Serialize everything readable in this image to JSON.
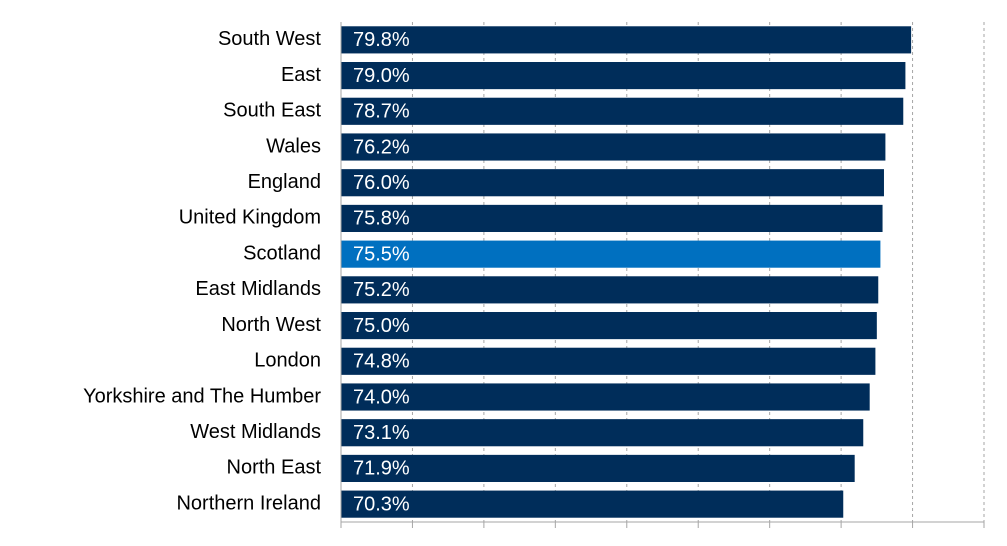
{
  "chart_data": {
    "type": "hbar",
    "categories": [
      "South West",
      "East",
      "South East",
      "Wales",
      "England",
      "United Kingdom",
      "Scotland",
      "East Midlands",
      "North West",
      "London",
      "Yorkshire and The Humber",
      "West Midlands",
      "North East",
      "Northern Ireland"
    ],
    "values": [
      79.8,
      79.0,
      78.7,
      76.2,
      76.0,
      75.8,
      75.5,
      75.2,
      75.0,
      74.8,
      74.0,
      73.1,
      71.9,
      70.3
    ],
    "value_labels": [
      "79.8%",
      "79.0%",
      "78.7%",
      "76.2%",
      "76.0%",
      "75.8%",
      "75.5%",
      "75.2%",
      "75.0%",
      "74.8%",
      "74.0%",
      "73.1%",
      "71.9%",
      "70.3%"
    ],
    "colors": [
      "#002d5a",
      "#002d5a",
      "#002d5a",
      "#002d5a",
      "#002d5a",
      "#002d5a",
      "#0070c0",
      "#002d5a",
      "#002d5a",
      "#002d5a",
      "#002d5a",
      "#002d5a",
      "#002d5a",
      "#002d5a"
    ],
    "xlim": [
      0,
      90
    ],
    "xticks": [
      0,
      10,
      20,
      30,
      40,
      50,
      60,
      70,
      80,
      90
    ],
    "grid": true
  }
}
